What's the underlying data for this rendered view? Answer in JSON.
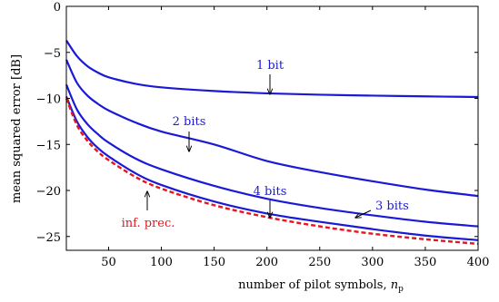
{
  "chart_data": {
    "type": "line",
    "xlabel": "number of pilot symbols, ",
    "xlabel_symbol": "n",
    "xlabel_subscript": "p",
    "ylabel": "mean squared error [dB]",
    "xlim": [
      10,
      400
    ],
    "ylim": [
      -26.5,
      0
    ],
    "xticks": [
      50,
      100,
      150,
      200,
      250,
      300,
      350,
      400
    ],
    "yticks": [
      0,
      -5,
      -10,
      -15,
      -20,
      -25
    ],
    "xtick_labels": [
      "50",
      "100",
      "150",
      "200",
      "250",
      "300",
      "350",
      "400"
    ],
    "ytick_labels": [
      "0",
      "−5",
      "−10",
      "−15",
      "−20",
      "−25"
    ],
    "grid": false,
    "series": [
      {
        "name": "1 bit",
        "color": "#1a1ad6",
        "style": "solid",
        "x": [
          10,
          20,
          30,
          40,
          50,
          75,
          100,
          150,
          200,
          250,
          300,
          350,
          400
        ],
        "y": [
          -3.7,
          -5.4,
          -6.5,
          -7.2,
          -7.7,
          -8.4,
          -8.8,
          -9.2,
          -9.45,
          -9.6,
          -9.7,
          -9.78,
          -9.85
        ]
      },
      {
        "name": "2 bits",
        "color": "#1a1ad6",
        "style": "solid",
        "x": [
          10,
          20,
          30,
          40,
          50,
          75,
          100,
          150,
          200,
          250,
          300,
          350,
          400
        ],
        "y": [
          -5.8,
          -8.3,
          -9.7,
          -10.6,
          -11.3,
          -12.6,
          -13.6,
          -15.0,
          -16.8,
          -18.0,
          -19.0,
          -19.9,
          -20.6
        ]
      },
      {
        "name": "3 bits",
        "color": "#1a1ad6",
        "style": "solid",
        "x": [
          10,
          20,
          30,
          40,
          50,
          75,
          100,
          150,
          200,
          250,
          300,
          350,
          400
        ],
        "y": [
          -8.5,
          -11.2,
          -12.8,
          -13.9,
          -14.8,
          -16.5,
          -17.7,
          -19.5,
          -20.9,
          -21.9,
          -22.7,
          -23.4,
          -23.9
        ]
      },
      {
        "name": "4 bits",
        "color": "#1a1ad6",
        "style": "solid",
        "x": [
          10,
          20,
          30,
          40,
          50,
          75,
          100,
          150,
          200,
          250,
          300,
          350,
          400
        ],
        "y": [
          -9.8,
          -12.5,
          -14.2,
          -15.4,
          -16.3,
          -18.1,
          -19.4,
          -21.2,
          -22.5,
          -23.4,
          -24.2,
          -24.9,
          -25.4
        ]
      },
      {
        "name": "inf. prec.",
        "color": "#e8141e",
        "style": "dashed",
        "x": [
          10,
          20,
          30,
          40,
          50,
          75,
          100,
          150,
          200,
          250,
          300,
          350,
          400
        ],
        "y": [
          -10.0,
          -12.9,
          -14.6,
          -15.8,
          -16.7,
          -18.5,
          -19.8,
          -21.6,
          -22.9,
          -23.9,
          -24.7,
          -25.3,
          -25.8
        ]
      }
    ],
    "annotations": [
      {
        "text": "1 bit",
        "color": "#1a1ad6",
        "arrow_to": [
          205,
          -9.45
        ]
      },
      {
        "text": "2 bits",
        "color": "#1a1ad6",
        "arrow_to": [
          128,
          -15.8
        ]
      },
      {
        "text": "4 bits",
        "color": "#1a1ad6",
        "arrow_to": [
          205,
          -22.5
        ]
      },
      {
        "text": "3 bits",
        "color": "#1a1ad6",
        "arrow_to": [
          282,
          -22.3
        ]
      },
      {
        "text": "inf. prec.",
        "color": "#e8141e",
        "arrow_to": [
          88,
          -19.2
        ]
      }
    ]
  }
}
